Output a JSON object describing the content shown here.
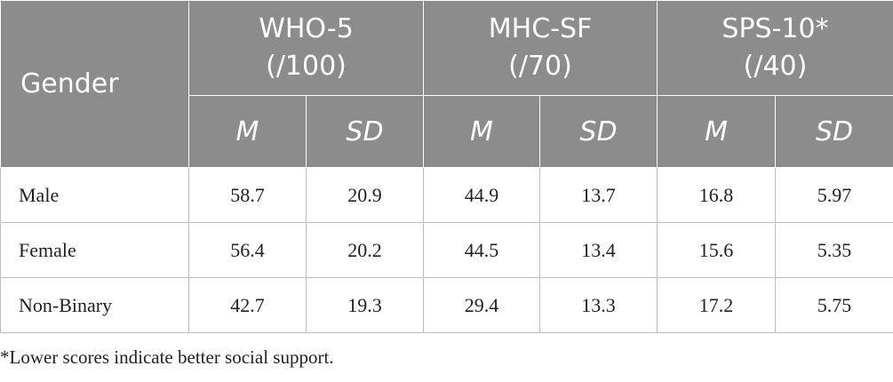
{
  "header": {
    "gender": "Gender",
    "groups": [
      {
        "name": "WHO-5",
        "scale": "(/100)"
      },
      {
        "name": "MHC-SF",
        "scale": "(/70)"
      },
      {
        "name": "SPS-10*",
        "scale": "(/40)"
      }
    ],
    "sub": {
      "m": "M",
      "sd": "SD"
    }
  },
  "rows": [
    {
      "label": "Male",
      "values": [
        "58.7",
        "20.9",
        "44.9",
        "13.7",
        "16.8",
        "5.97"
      ]
    },
    {
      "label": "Female",
      "values": [
        "56.4",
        "20.2",
        "44.5",
        "13.4",
        "15.6",
        "5.35"
      ]
    },
    {
      "label": "Non-Binary",
      "values": [
        "42.7",
        "19.3",
        "29.4",
        "13.3",
        "17.2",
        "5.75"
      ]
    }
  ],
  "footnote": "*Lower scores indicate better social support."
}
